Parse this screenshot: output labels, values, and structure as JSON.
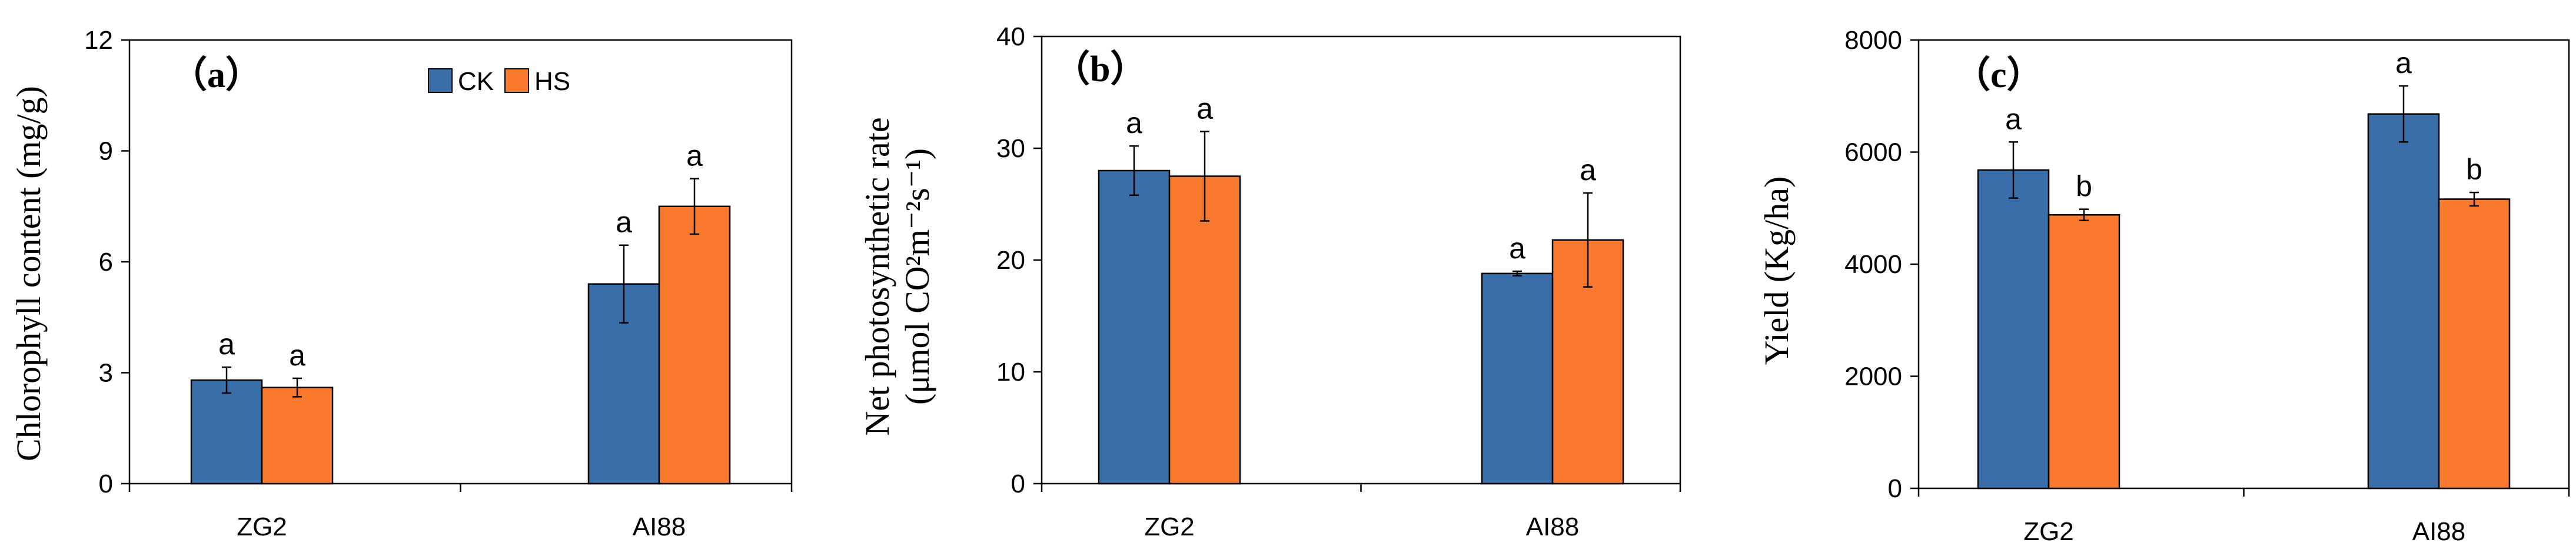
{
  "legend": [
    "CK",
    "HS"
  ],
  "colors": {
    "CK": "#3A6EA8",
    "HS": "#F9792F"
  },
  "chart_data": [
    {
      "type": "bar",
      "panel_label": "（a）",
      "categories": [
        "ZG2",
        "AI88"
      ],
      "ylabel": "Chlorophyll content (mg/g)",
      "ylim": [
        0,
        12
      ],
      "yticks": [
        0,
        3,
        6,
        9,
        12
      ],
      "legend_position": "top-center",
      "series": [
        {
          "name": "CK",
          "values": [
            2.8,
            5.4
          ],
          "errors": [
            0.35,
            1.05
          ],
          "letters": [
            "a",
            "a"
          ]
        },
        {
          "name": "HS",
          "values": [
            2.6,
            7.5
          ],
          "errors": [
            0.25,
            0.75
          ],
          "letters": [
            "a",
            "a"
          ]
        }
      ]
    },
    {
      "type": "bar",
      "panel_label": "（b）",
      "categories": [
        "ZG2",
        "AI88"
      ],
      "ylabel_line1": "Net photosynthetic rate",
      "ylabel_line2": "(μmol CO²m⁻²s⁻¹)",
      "ylim": [
        0,
        40
      ],
      "yticks": [
        0,
        10,
        20,
        30,
        40
      ],
      "series": [
        {
          "name": "CK",
          "values": [
            28.0,
            18.8
          ],
          "errors": [
            2.2,
            0.2
          ],
          "letters": [
            "a",
            "a"
          ]
        },
        {
          "name": "HS",
          "values": [
            27.5,
            21.8
          ],
          "errors": [
            4.0,
            4.2
          ],
          "letters": [
            "a",
            "a"
          ]
        }
      ]
    },
    {
      "type": "bar",
      "panel_label": "（c）",
      "categories": [
        "ZG2",
        "AI88"
      ],
      "ylabel": "Yield (Kg/ha)",
      "ylim": [
        0,
        8000
      ],
      "yticks": [
        0,
        2000,
        4000,
        6000,
        8000
      ],
      "series": [
        {
          "name": "CK",
          "values": [
            5680,
            6680
          ],
          "errors": [
            500,
            500
          ],
          "letters": [
            "a",
            "a"
          ]
        },
        {
          "name": "HS",
          "values": [
            4880,
            5160
          ],
          "errors": [
            100,
            120
          ],
          "letters": [
            "b",
            "b"
          ]
        }
      ]
    }
  ]
}
